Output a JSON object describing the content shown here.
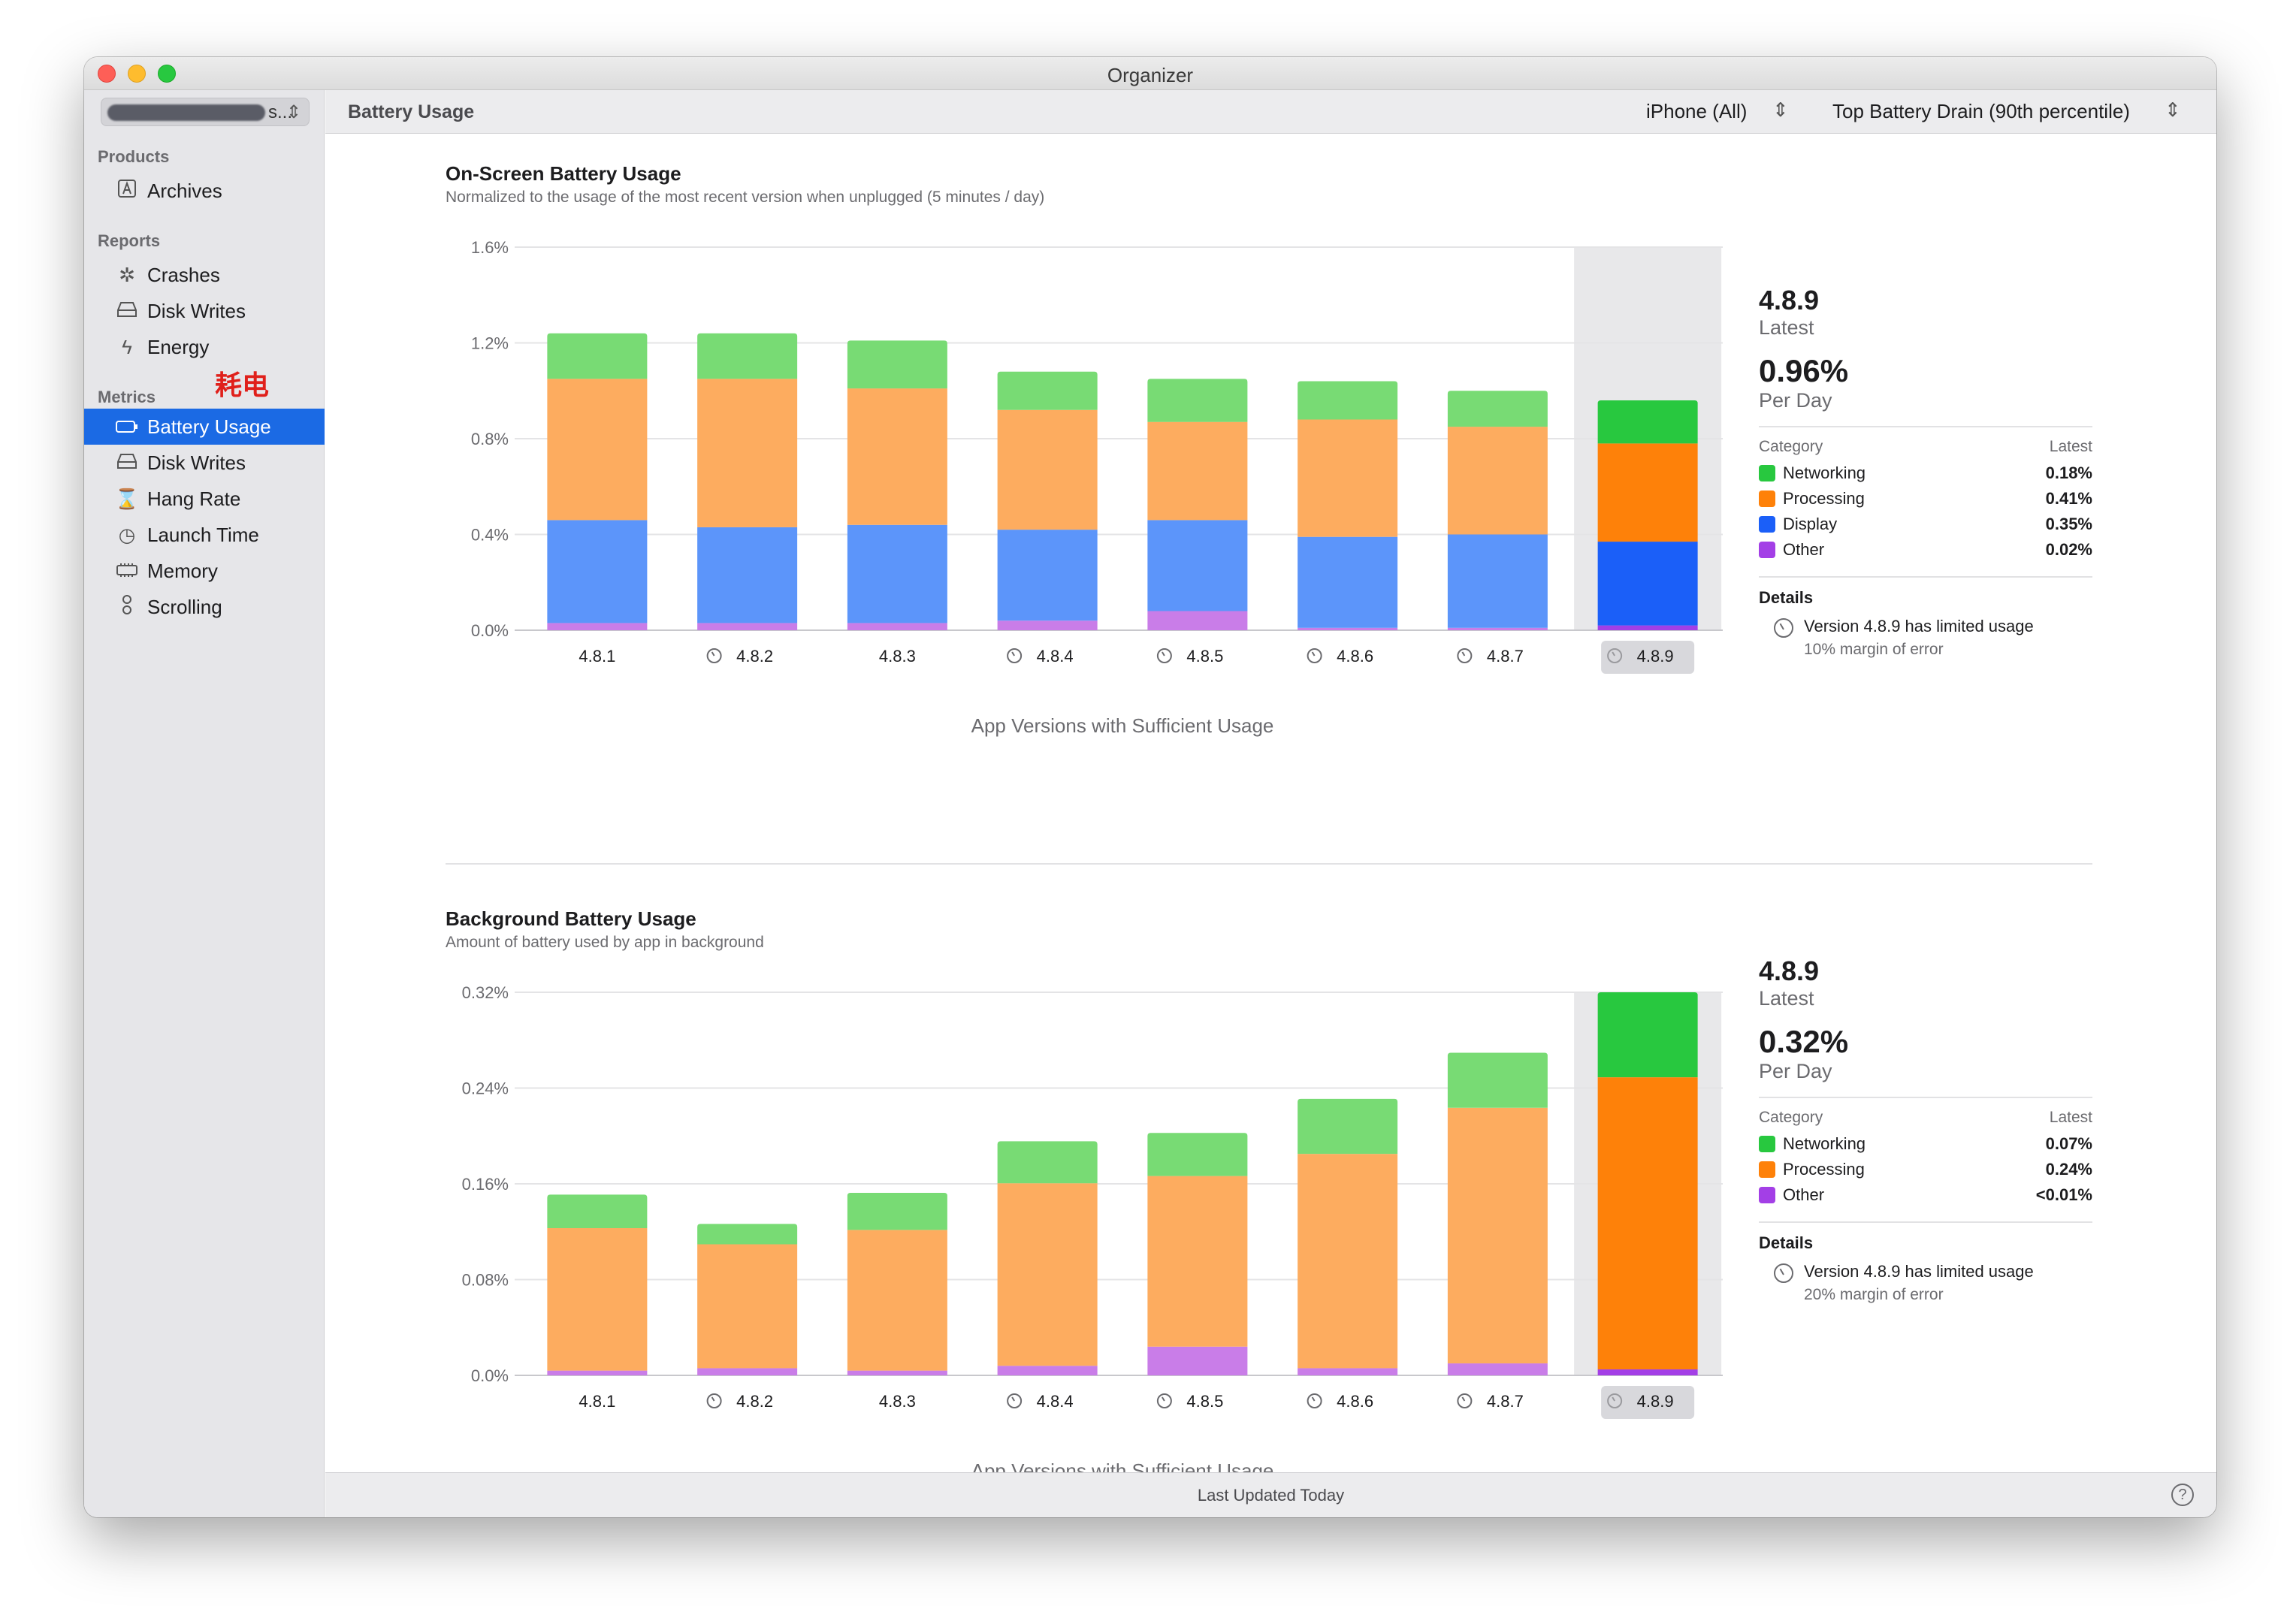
{
  "window": {
    "title": "Organizer"
  },
  "sidebar": {
    "scheme_label": "s...",
    "groups": [
      {
        "label": "Products",
        "items": [
          {
            "label": "Archives",
            "icon": "archive-icon"
          }
        ]
      },
      {
        "label": "Reports",
        "items": [
          {
            "label": "Crashes",
            "icon": "crash-icon"
          },
          {
            "label": "Disk Writes",
            "icon": "disk-icon"
          },
          {
            "label": "Energy",
            "icon": "energy-icon"
          }
        ]
      },
      {
        "label": "Metrics",
        "items": [
          {
            "label": "Battery Usage",
            "icon": "battery-icon",
            "selected": true
          },
          {
            "label": "Disk Writes",
            "icon": "disk-icon"
          },
          {
            "label": "Hang Rate",
            "icon": "hourglass-icon"
          },
          {
            "label": "Launch Time",
            "icon": "clock-icon"
          },
          {
            "label": "Memory",
            "icon": "memory-icon"
          },
          {
            "label": "Scrolling",
            "icon": "scroll-icon"
          }
        ]
      }
    ],
    "annotation": "耗电"
  },
  "header": {
    "title": "Battery Usage",
    "device_filter": "iPhone (All)",
    "metric_filter": "Top Battery Drain (90th percentile)"
  },
  "colors": {
    "networking": "#78db74",
    "processing": "#fdac5f",
    "display": "#5c95fa",
    "other": "#c97de8",
    "networking_latest": "#28c83f",
    "processing_latest": "#fe8109",
    "display_latest": "#1b5ff8",
    "other_latest": "#a33fe6",
    "highlight": "#e8e8ea"
  },
  "onscreen": {
    "title": "On-Screen Battery Usage",
    "subtitle": "Normalized to the usage of the most recent version when unplugged (5 minutes / day)",
    "x_caption": "App Versions with Sufficient Usage",
    "stats": {
      "version": "4.8.9",
      "version_sub": "Latest",
      "value": "0.96%",
      "value_sub": "Per Day",
      "category_header": "Category",
      "latest_header": "Latest",
      "legend": [
        {
          "name": "Networking",
          "value": "0.18%",
          "color": "#28c83f"
        },
        {
          "name": "Processing",
          "value": "0.41%",
          "color": "#fe8109"
        },
        {
          "name": "Display",
          "value": "0.35%",
          "color": "#1b5ff8"
        },
        {
          "name": "Other",
          "value": "0.02%",
          "color": "#a33fe6"
        }
      ],
      "details_title": "Details",
      "details_line1": "Version 4.8.9 has limited usage",
      "details_line2": "10% margin of error"
    }
  },
  "background": {
    "title": "Background Battery Usage",
    "subtitle": "Amount of battery used by app in background",
    "x_caption": "App Versions with Sufficient Usage",
    "stats": {
      "version": "4.8.9",
      "version_sub": "Latest",
      "value": "0.32%",
      "value_sub": "Per Day",
      "category_header": "Category",
      "latest_header": "Latest",
      "legend": [
        {
          "name": "Networking",
          "value": "0.07%",
          "color": "#28c83f"
        },
        {
          "name": "Processing",
          "value": "0.24%",
          "color": "#fe8109"
        },
        {
          "name": "Other",
          "value": "<0.01%",
          "color": "#a33fe6"
        }
      ],
      "details_title": "Details",
      "details_line1": "Version 4.8.9 has limited usage",
      "details_line2": "20% margin of error"
    }
  },
  "chart_data": [
    {
      "type": "bar",
      "stacked": true,
      "title": "On-Screen Battery Usage",
      "categories": [
        "4.8.1",
        "4.8.2",
        "4.8.3",
        "4.8.4",
        "4.8.5",
        "4.8.6",
        "4.8.7",
        "4.8.9"
      ],
      "limited_usage": [
        false,
        true,
        false,
        true,
        true,
        true,
        true,
        true
      ],
      "highlighted": "4.8.9",
      "yticks": [
        "0.0%",
        "0.4%",
        "0.8%",
        "1.2%",
        "1.6%"
      ],
      "ylim": [
        0,
        1.6
      ],
      "series": [
        {
          "name": "Other",
          "values": [
            0.03,
            0.03,
            0.03,
            0.04,
            0.08,
            0.01,
            0.01,
            0.02
          ]
        },
        {
          "name": "Display",
          "values": [
            0.43,
            0.4,
            0.41,
            0.38,
            0.38,
            0.38,
            0.39,
            0.35
          ]
        },
        {
          "name": "Processing",
          "values": [
            0.59,
            0.62,
            0.57,
            0.5,
            0.41,
            0.49,
            0.45,
            0.41
          ]
        },
        {
          "name": "Networking",
          "values": [
            0.19,
            0.19,
            0.2,
            0.16,
            0.18,
            0.16,
            0.15,
            0.18
          ]
        }
      ]
    },
    {
      "type": "bar",
      "stacked": true,
      "title": "Background Battery Usage",
      "categories": [
        "4.8.1",
        "4.8.2",
        "4.8.3",
        "4.8.4",
        "4.8.5",
        "4.8.6",
        "4.8.7",
        "4.8.9"
      ],
      "limited_usage": [
        false,
        true,
        false,
        true,
        true,
        true,
        true,
        true
      ],
      "highlighted": "4.8.9",
      "yticks": [
        "0.0%",
        "0.08%",
        "0.16%",
        "0.24%",
        "0.32%"
      ],
      "ylim": [
        0,
        0.32
      ],
      "series": [
        {
          "name": "Other",
          "values": [
            0.004,
            0.006,
            0.004,
            0.008,
            0.024,
            0.006,
            0.01,
            0.005
          ]
        },
        {
          "name": "Processing",
          "values": [
            0.119,
            0.1035,
            0.1175,
            0.1525,
            0.1425,
            0.179,
            0.2135,
            0.244
          ]
        },
        {
          "name": "Networking",
          "values": [
            0.028,
            0.017,
            0.031,
            0.035,
            0.036,
            0.046,
            0.046,
            0.071
          ]
        }
      ]
    }
  ],
  "footer": {
    "status": "Last Updated Today",
    "help": "?"
  }
}
